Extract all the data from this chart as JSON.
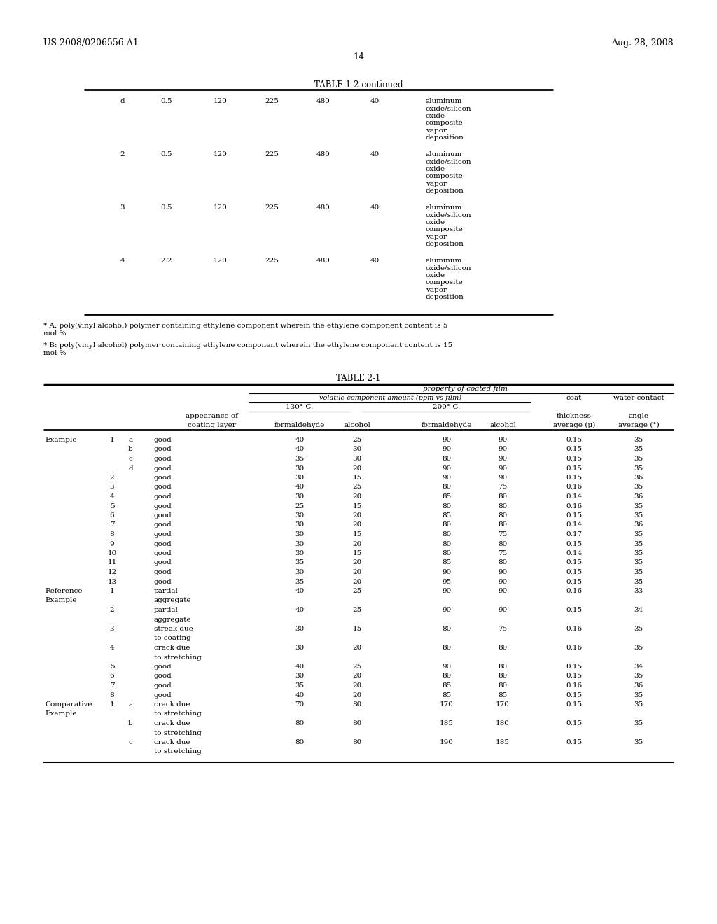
{
  "header_left": "US 2008/0206556 A1",
  "header_right": "Aug. 28, 2008",
  "page_number": "14",
  "table1_title": "TABLE 1-2-continued",
  "table1_rows": [
    {
      "col1": "d",
      "col2": "0.5",
      "col3": "120",
      "col4": "225",
      "col5": "480",
      "col6": "40",
      "col7": "aluminum\noxide/silicon\noxide\ncomposite\nvapor\ndeposition"
    },
    {
      "col1": "2",
      "col2": "0.5",
      "col3": "120",
      "col4": "225",
      "col5": "480",
      "col6": "40",
      "col7": "aluminum\noxide/silicon\noxide\ncomposite\nvapor\ndeposition"
    },
    {
      "col1": "3",
      "col2": "0.5",
      "col3": "120",
      "col4": "225",
      "col5": "480",
      "col6": "40",
      "col7": "aluminum\noxide/silicon\noxide\ncomposite\nvapor\ndeposition"
    },
    {
      "col1": "4",
      "col2": "2.2",
      "col3": "120",
      "col4": "225",
      "col5": "480",
      "col6": "40",
      "col7": "aluminum\noxide/silicon\noxide\ncomposite\nvapor\ndeposition"
    }
  ],
  "footnote_a": "* A: poly(vinyl alcohol) polymer containing ethylene component wherein the ethylene component content is 5\nmol %",
  "footnote_b": "* B: poly(vinyl alcohol) polymer containing ethylene component wherein the ethylene component content is 15\nmol %",
  "table2_title": "TABLE 2-1",
  "table2_header": {
    "main_header": "property of coated film",
    "sub_header1": "volatile component amount (ppm vs film)",
    "sub_header2": "coat",
    "sub_header3": "water contact",
    "col130": "130° C.",
    "col200": "200° C.",
    "col_thick": "thickness",
    "col_angle": "angle",
    "appearance": "appearance of",
    "coating_layer": "coating layer",
    "formaldehyde1": "formaldehyde",
    "alcohol1": "alcohol",
    "formaldehyde2": "formaldehyde",
    "alcohol2": "alcohol",
    "avg_mu": "average (μ)",
    "avg_deg": "average (°)"
  },
  "table2_data": [
    {
      "group": "Example",
      "num": "1",
      "sub": "a",
      "appearance": "good",
      "f130": "40",
      "a130": "25",
      "f200": "90",
      "a200": "90",
      "thick": "0.15",
      "angle": "35"
    },
    {
      "group": "",
      "num": "",
      "sub": "b",
      "appearance": "good",
      "f130": "40",
      "a130": "30",
      "f200": "90",
      "a200": "90",
      "thick": "0.15",
      "angle": "35"
    },
    {
      "group": "",
      "num": "",
      "sub": "c",
      "appearance": "good",
      "f130": "35",
      "a130": "30",
      "f200": "80",
      "a200": "90",
      "thick": "0.15",
      "angle": "35"
    },
    {
      "group": "",
      "num": "",
      "sub": "d",
      "appearance": "good",
      "f130": "30",
      "a130": "20",
      "f200": "90",
      "a200": "90",
      "thick": "0.15",
      "angle": "35"
    },
    {
      "group": "",
      "num": "2",
      "sub": "",
      "appearance": "good",
      "f130": "30",
      "a130": "15",
      "f200": "90",
      "a200": "90",
      "thick": "0.15",
      "angle": "36"
    },
    {
      "group": "",
      "num": "3",
      "sub": "",
      "appearance": "good",
      "f130": "40",
      "a130": "25",
      "f200": "80",
      "a200": "75",
      "thick": "0.16",
      "angle": "35"
    },
    {
      "group": "",
      "num": "4",
      "sub": "",
      "appearance": "good",
      "f130": "30",
      "a130": "20",
      "f200": "85",
      "a200": "80",
      "thick": "0.14",
      "angle": "36"
    },
    {
      "group": "",
      "num": "5",
      "sub": "",
      "appearance": "good",
      "f130": "25",
      "a130": "15",
      "f200": "80",
      "a200": "80",
      "thick": "0.16",
      "angle": "35"
    },
    {
      "group": "",
      "num": "6",
      "sub": "",
      "appearance": "good",
      "f130": "30",
      "a130": "20",
      "f200": "85",
      "a200": "80",
      "thick": "0.15",
      "angle": "35"
    },
    {
      "group": "",
      "num": "7",
      "sub": "",
      "appearance": "good",
      "f130": "30",
      "a130": "20",
      "f200": "80",
      "a200": "80",
      "thick": "0.14",
      "angle": "36"
    },
    {
      "group": "",
      "num": "8",
      "sub": "",
      "appearance": "good",
      "f130": "30",
      "a130": "15",
      "f200": "80",
      "a200": "75",
      "thick": "0.17",
      "angle": "35"
    },
    {
      "group": "",
      "num": "9",
      "sub": "",
      "appearance": "good",
      "f130": "30",
      "a130": "20",
      "f200": "80",
      "a200": "80",
      "thick": "0.15",
      "angle": "35"
    },
    {
      "group": "",
      "num": "10",
      "sub": "",
      "appearance": "good",
      "f130": "30",
      "a130": "15",
      "f200": "80",
      "a200": "75",
      "thick": "0.14",
      "angle": "35"
    },
    {
      "group": "",
      "num": "11",
      "sub": "",
      "appearance": "good",
      "f130": "35",
      "a130": "20",
      "f200": "85",
      "a200": "80",
      "thick": "0.15",
      "angle": "35"
    },
    {
      "group": "",
      "num": "12",
      "sub": "",
      "appearance": "good",
      "f130": "30",
      "a130": "20",
      "f200": "90",
      "a200": "90",
      "thick": "0.15",
      "angle": "35"
    },
    {
      "group": "",
      "num": "13",
      "sub": "",
      "appearance": "good",
      "f130": "35",
      "a130": "20",
      "f200": "95",
      "a200": "90",
      "thick": "0.15",
      "angle": "35"
    },
    {
      "group": "Reference\nExample",
      "num": "1",
      "sub": "",
      "appearance": "partial\naggregate",
      "f130": "40",
      "a130": "25",
      "f200": "90",
      "a200": "90",
      "thick": "0.16",
      "angle": "33"
    },
    {
      "group": "",
      "num": "2",
      "sub": "",
      "appearance": "partial\naggregate",
      "f130": "40",
      "a130": "25",
      "f200": "90",
      "a200": "90",
      "thick": "0.15",
      "angle": "34"
    },
    {
      "group": "",
      "num": "3",
      "sub": "",
      "appearance": "streak due\nto coating",
      "f130": "30",
      "a130": "15",
      "f200": "80",
      "a200": "75",
      "thick": "0.16",
      "angle": "35"
    },
    {
      "group": "",
      "num": "4",
      "sub": "",
      "appearance": "crack due\nto stretching",
      "f130": "30",
      "a130": "20",
      "f200": "80",
      "a200": "80",
      "thick": "0.16",
      "angle": "35"
    },
    {
      "group": "",
      "num": "5",
      "sub": "",
      "appearance": "good",
      "f130": "40",
      "a130": "25",
      "f200": "90",
      "a200": "80",
      "thick": "0.15",
      "angle": "34"
    },
    {
      "group": "",
      "num": "6",
      "sub": "",
      "appearance": "good",
      "f130": "30",
      "a130": "20",
      "f200": "80",
      "a200": "80",
      "thick": "0.15",
      "angle": "35"
    },
    {
      "group": "",
      "num": "7",
      "sub": "",
      "appearance": "good",
      "f130": "35",
      "a130": "20",
      "f200": "85",
      "a200": "80",
      "thick": "0.16",
      "angle": "36"
    },
    {
      "group": "",
      "num": "8",
      "sub": "",
      "appearance": "good",
      "f130": "40",
      "a130": "20",
      "f200": "85",
      "a200": "85",
      "thick": "0.15",
      "angle": "35"
    },
    {
      "group": "Comparative\nExample",
      "num": "1",
      "sub": "a",
      "appearance": "crack due\nto stretching",
      "f130": "70",
      "a130": "80",
      "f200": "170",
      "a200": "170",
      "thick": "0.15",
      "angle": "35"
    },
    {
      "group": "",
      "num": "",
      "sub": "b",
      "appearance": "crack due\nto stretching",
      "f130": "80",
      "a130": "80",
      "f200": "185",
      "a200": "180",
      "thick": "0.15",
      "angle": "35"
    },
    {
      "group": "",
      "num": "",
      "sub": "c",
      "appearance": "crack due\nto stretching",
      "f130": "80",
      "a130": "80",
      "f200": "190",
      "a200": "185",
      "thick": "0.15",
      "angle": "35"
    }
  ],
  "bg_color": "#ffffff",
  "text_color": "#000000",
  "font_size": 7.5,
  "font_family": "DejaVu Serif"
}
